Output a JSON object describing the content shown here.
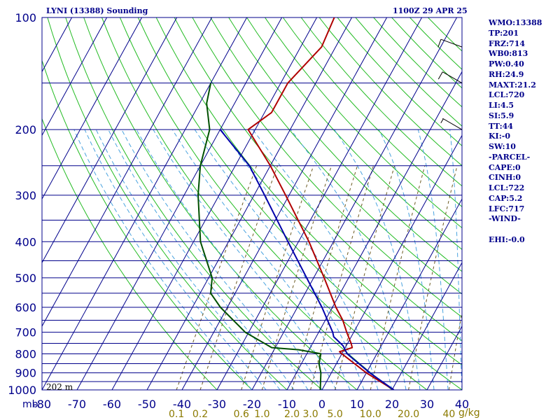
{
  "header": {
    "title": "LYNI (13388) Sounding",
    "timestamp": "1100Z 29 APR 25"
  },
  "indices": [
    "WMO:13388",
    "TP:201",
    "FRZ:714",
    "WB0:813",
    "PW:0.40",
    "RH:24.9",
    "MAXT:21.2",
    "LCL:720",
    "LI:4.5",
    "SI:5.9",
    "TT:44",
    "KI:-0",
    "SW:10",
    "-PARCEL-",
    "CAPE:0",
    "CINH:0",
    "LCL:722",
    "CAP:5.2",
    "LFC:717",
    "-WIND-",
    "",
    "EHI:-0.0"
  ],
  "surface_height_label": "202 m",
  "chart_data": {
    "type": "line",
    "y_scale": "log",
    "ylim": [
      1000,
      100
    ],
    "xlim": [
      -80,
      40
    ],
    "y_ticks": [
      "100",
      "200",
      "300",
      "400",
      "500",
      "600",
      "700",
      "800",
      "900",
      "1000"
    ],
    "x_ticks": [
      "-80",
      "-70",
      "-60",
      "-50",
      "-40",
      "-30",
      "-20",
      "-10",
      "0",
      "10",
      "20",
      "30",
      "40"
    ],
    "x_unit": "mb",
    "mixing_ratio_ticks": [
      "0.1",
      "0.2",
      "0.6",
      "1.0",
      "2.0",
      "3.0",
      "5.0",
      "10.0",
      "20.0",
      "40"
    ],
    "mixing_ratio_unit": "g/kg",
    "isotherm_spacing": 10,
    "grid": true,
    "colors": {
      "isobar": "#00008b",
      "isotherm": "#00008b",
      "dry_adiabat": "#22bb22",
      "moist_adiabat": "#4aa3df",
      "mixing_ratio": "#6b5a22",
      "temperature": "#b00000",
      "dewpoint": "#005000",
      "parcel": "#0000aa",
      "text": "#00008b"
    },
    "series": [
      {
        "key": "temperature",
        "points": [
          [
            1000,
            20.5
          ],
          [
            900,
            10
          ],
          [
            800,
            0
          ],
          [
            790,
            -1
          ],
          [
            780,
            0.5
          ],
          [
            770,
            2
          ],
          [
            750,
            1
          ],
          [
            700,
            -2
          ],
          [
            650,
            -5
          ],
          [
            600,
            -9
          ],
          [
            500,
            -17
          ],
          [
            400,
            -27
          ],
          [
            300,
            -41
          ],
          [
            250,
            -50
          ],
          [
            200,
            -62
          ],
          [
            180,
            -58
          ],
          [
            150,
            -58
          ],
          [
            120,
            -54
          ],
          [
            100,
            -55
          ]
        ]
      },
      {
        "key": "dewpoint",
        "points": [
          [
            1000,
            -0.5
          ],
          [
            900,
            -3
          ],
          [
            850,
            -5
          ],
          [
            800,
            -6
          ],
          [
            780,
            -13
          ],
          [
            770,
            -21
          ],
          [
            700,
            -31
          ],
          [
            600,
            -42
          ],
          [
            550,
            -47
          ],
          [
            500,
            -49
          ],
          [
            400,
            -58
          ],
          [
            300,
            -66
          ],
          [
            250,
            -70
          ],
          [
            200,
            -73
          ],
          [
            170,
            -78
          ],
          [
            150,
            -80
          ]
        ]
      },
      {
        "key": "parcel",
        "points": [
          [
            1000,
            20.5
          ],
          [
            900,
            11
          ],
          [
            800,
            1.5
          ],
          [
            760,
            -1
          ],
          [
            720,
            -5
          ],
          [
            700,
            -6
          ],
          [
            600,
            -13
          ],
          [
            500,
            -22
          ],
          [
            400,
            -33
          ],
          [
            300,
            -47
          ],
          [
            250,
            -56
          ],
          [
            200,
            -70
          ]
        ]
      }
    ],
    "wind_barbs": [
      {
        "pressure": 120,
        "direction_deg": 290,
        "speed_kt": 10
      },
      {
        "pressure": 150,
        "direction_deg": 300,
        "speed_kt": 10
      },
      {
        "pressure": 200,
        "direction_deg": 300,
        "speed_kt": 5
      }
    ]
  }
}
